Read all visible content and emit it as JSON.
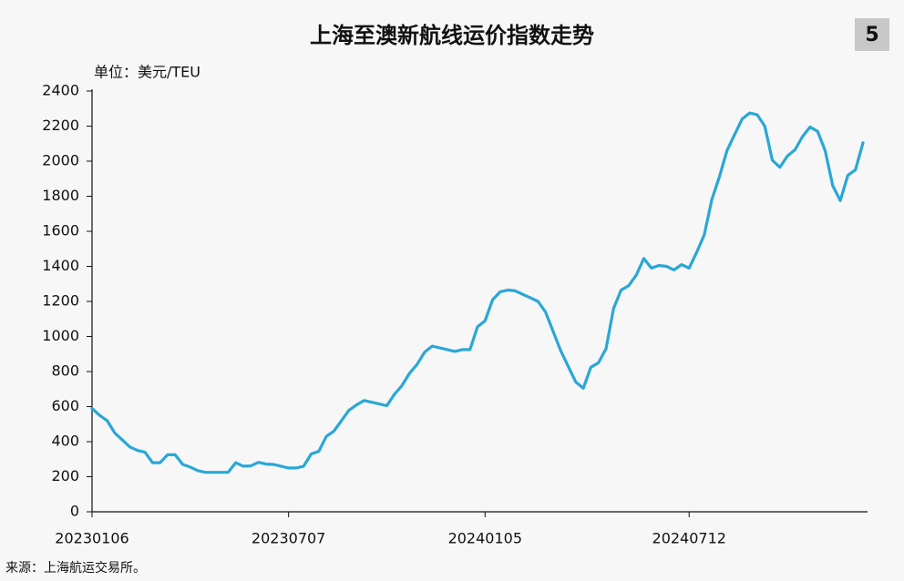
{
  "chart_data": {
    "type": "line",
    "title": "上海至澳新航线运价指数走势",
    "badge": "5",
    "unit_label": "单位：美元/TEU",
    "source": "来源：上海航运交易所。",
    "color": "#2aa7d6",
    "categories": [
      "20230106",
      null,
      null,
      null,
      null,
      null,
      null,
      null,
      null,
      null,
      null,
      null,
      null,
      null,
      null,
      null,
      null,
      null,
      null,
      null,
      null,
      null,
      null,
      null,
      null,
      null,
      "20230707",
      null,
      null,
      null,
      null,
      null,
      null,
      null,
      null,
      null,
      null,
      null,
      null,
      null,
      null,
      null,
      null,
      null,
      null,
      null,
      null,
      null,
      null,
      null,
      null,
      null,
      "20240105",
      null,
      null,
      null,
      null,
      null,
      null,
      null,
      null,
      null,
      null,
      null,
      null,
      null,
      null,
      null,
      null,
      null,
      null,
      null,
      null,
      null,
      null,
      null,
      null,
      null,
      null,
      "20240712",
      null,
      null,
      null,
      null,
      null,
      null,
      null,
      null,
      null,
      null,
      null,
      null,
      null,
      null,
      null,
      null,
      null,
      null,
      null,
      null,
      null,
      null,
      null
    ],
    "values": [
      590,
      550,
      520,
      450,
      410,
      370,
      350,
      340,
      280,
      280,
      325,
      325,
      270,
      255,
      235,
      225,
      225,
      225,
      225,
      280,
      260,
      262,
      282,
      272,
      270,
      260,
      250,
      250,
      260,
      330,
      345,
      430,
      460,
      520,
      580,
      610,
      635,
      625,
      615,
      605,
      670,
      720,
      790,
      840,
      910,
      945,
      935,
      925,
      915,
      925,
      925,
      1055,
      1090,
      1210,
      1255,
      1265,
      1260,
      1240,
      1220,
      1200,
      1140,
      1030,
      920,
      830,
      740,
      705,
      825,
      850,
      930,
      1160,
      1265,
      1290,
      1350,
      1445,
      1390,
      1405,
      1400,
      1380,
      1410,
      1390,
      1480,
      1580,
      1780,
      1910,
      2060,
      2150,
      2240,
      2275,
      2265,
      2200,
      2005,
      1965,
      2030,
      2065,
      2140,
      2195,
      2170,
      2060,
      1860,
      1775,
      1920,
      1950,
      2105
    ],
    "ylim": [
      0,
      2400
    ],
    "yticks": [
      0,
      200,
      400,
      600,
      800,
      1000,
      1200,
      1400,
      1600,
      1800,
      2000,
      2200,
      2400
    ]
  }
}
